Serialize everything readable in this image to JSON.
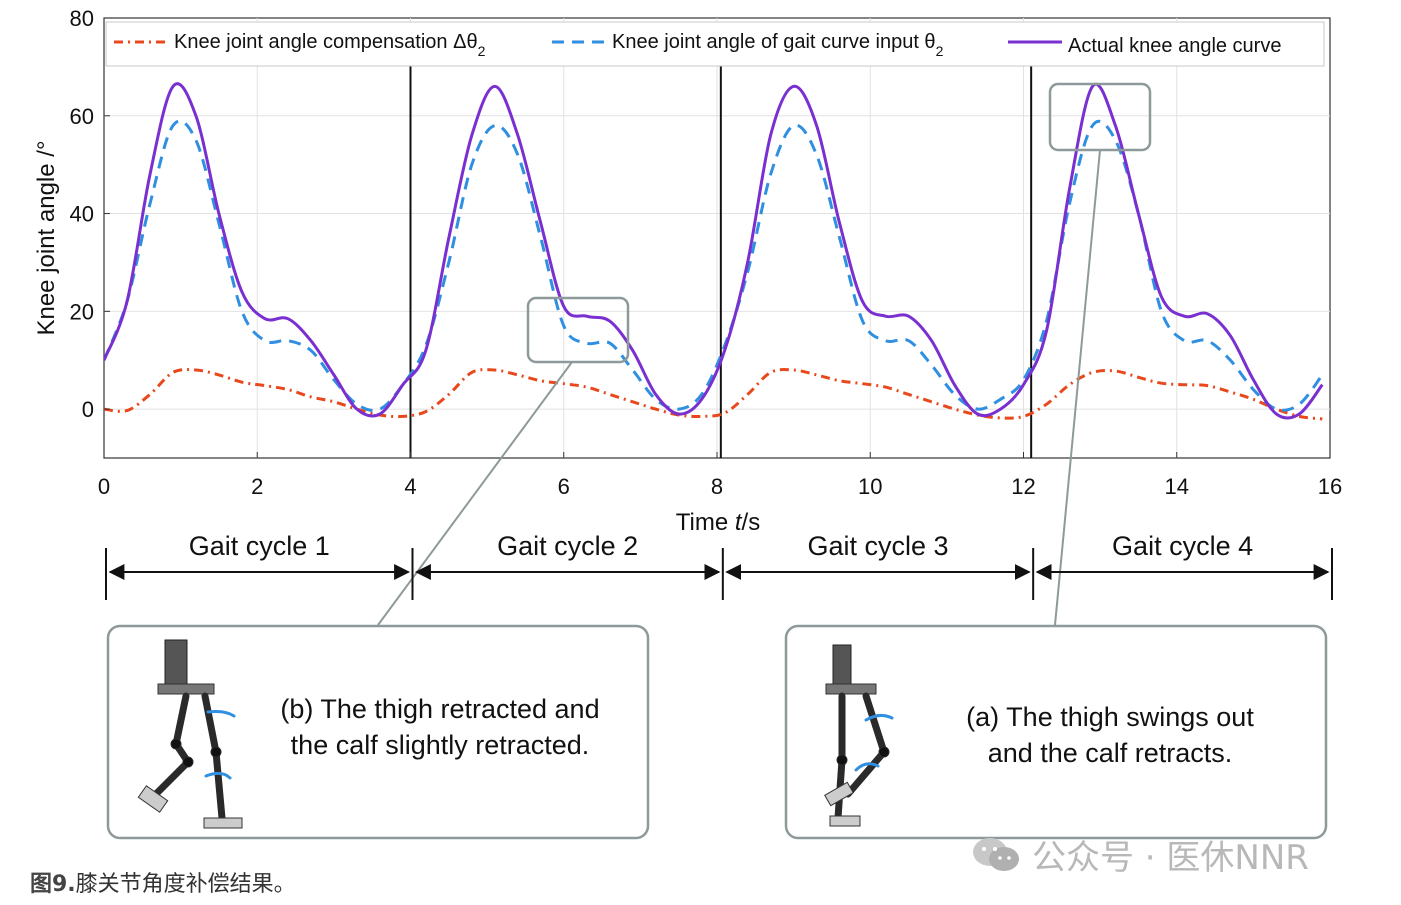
{
  "chart_data": {
    "type": "line",
    "xlabel_prefix": "Time ",
    "xlabel_var": "t",
    "xlabel_suffix": "/s",
    "ylabel": "Knee joint angle /°",
    "xlim": [
      0,
      16
    ],
    "ylim": [
      -10,
      80
    ],
    "xticks": [
      0,
      2,
      4,
      6,
      8,
      10,
      12,
      14,
      16
    ],
    "yticks": [
      0,
      20,
      40,
      60,
      80
    ],
    "grid": true,
    "legend_position": "top",
    "cycle_dividers": [
      4.0,
      8.05,
      12.1
    ],
    "series": [
      {
        "name": "Knee joint angle compensation Δθ2",
        "color": "#e8481c",
        "style": "dash-dot",
        "x": [
          0,
          0.3,
          0.6,
          0.9,
          1.2,
          1.5,
          1.8,
          2.1,
          2.4,
          2.7,
          3.0,
          3.3,
          3.6,
          3.9,
          4.2,
          4.5,
          4.8,
          5.1,
          5.4,
          5.7,
          6.0,
          6.3,
          6.6,
          6.9,
          7.2,
          7.5,
          7.8,
          8.1,
          8.4,
          8.7,
          9.0,
          9.3,
          9.6,
          9.9,
          10.2,
          10.5,
          10.8,
          11.1,
          11.4,
          11.7,
          12.0,
          12.3,
          12.6,
          12.9,
          13.2,
          13.5,
          13.8,
          14.1,
          14.4,
          14.7,
          15.0,
          15.3,
          15.6,
          15.9
        ],
        "y": [
          0,
          -0.3,
          3,
          7.5,
          8,
          7,
          5.5,
          4.8,
          4,
          2.5,
          1.5,
          0,
          -1.2,
          -1.5,
          -0.5,
          3,
          7.5,
          8,
          7,
          5.8,
          5.2,
          4.5,
          3,
          1.5,
          0,
          -1.2,
          -1.5,
          -0.8,
          3,
          7.5,
          8,
          7,
          5.8,
          5.2,
          4.5,
          3,
          1.5,
          0,
          -1.2,
          -1.8,
          -1.5,
          1,
          5,
          7.5,
          7.8,
          6.5,
          5.3,
          5,
          4.8,
          3.5,
          2,
          0,
          -1.5,
          -2
        ]
      },
      {
        "name": "Knee joint angle of gait curve input θ2",
        "color": "#2f8fe0",
        "style": "dashed",
        "x": [
          0,
          0.3,
          0.6,
          0.9,
          1.2,
          1.5,
          1.8,
          2.1,
          2.4,
          2.7,
          3.0,
          3.3,
          3.6,
          3.9,
          4.2,
          4.5,
          4.8,
          5.1,
          5.4,
          5.7,
          6.0,
          6.3,
          6.6,
          6.9,
          7.2,
          7.5,
          7.8,
          8.1,
          8.4,
          8.7,
          9.0,
          9.3,
          9.6,
          9.9,
          10.2,
          10.5,
          10.8,
          11.1,
          11.4,
          11.7,
          12.0,
          12.3,
          12.6,
          12.9,
          13.2,
          13.5,
          13.8,
          14.1,
          14.4,
          14.7,
          15.0,
          15.3,
          15.6,
          15.9
        ],
        "y": [
          10,
          22,
          42,
          58,
          55,
          38,
          20,
          14,
          14,
          12,
          6,
          1,
          0,
          5,
          13,
          30,
          50,
          58,
          52,
          35,
          17,
          13.5,
          13.5,
          8,
          2,
          0,
          3,
          13,
          28,
          48,
          58,
          52,
          35,
          18,
          14,
          14,
          9,
          3,
          0,
          2,
          6,
          18,
          42,
          58,
          55,
          40,
          20,
          14,
          14,
          10,
          4,
          0,
          1,
          7
        ]
      },
      {
        "name": "Actual knee angle curve",
        "color": "#7a2fd0",
        "style": "solid",
        "x": [
          0,
          0.3,
          0.6,
          0.9,
          1.2,
          1.5,
          1.8,
          2.1,
          2.4,
          2.7,
          3.0,
          3.3,
          3.6,
          3.9,
          4.2,
          4.5,
          4.8,
          5.1,
          5.4,
          5.7,
          6.0,
          6.3,
          6.6,
          6.9,
          7.2,
          7.5,
          7.8,
          8.1,
          8.4,
          8.7,
          9.0,
          9.3,
          9.6,
          9.9,
          10.2,
          10.5,
          10.8,
          11.1,
          11.4,
          11.7,
          12.0,
          12.3,
          12.6,
          12.9,
          13.2,
          13.5,
          13.8,
          14.1,
          14.4,
          14.7,
          15.0,
          15.3,
          15.6,
          15.9
        ],
        "y": [
          10,
          22,
          48,
          66,
          60,
          40,
          24,
          18.5,
          18.5,
          14,
          7,
          0,
          -1,
          5,
          12,
          35,
          56,
          66,
          56,
          38,
          21,
          19,
          18,
          12,
          3,
          -1,
          2,
          12,
          30,
          56,
          66,
          58,
          38,
          22,
          19,
          19,
          14,
          5,
          -1,
          0,
          5,
          16,
          45,
          66,
          58,
          40,
          23,
          19,
          19.5,
          15,
          6,
          -1,
          -1,
          5
        ]
      }
    ],
    "cycles": [
      "Gait cycle 1",
      "Gait cycle 2",
      "Gait cycle 3",
      "Gait cycle 4"
    ],
    "callout_b_line1": "(b) The thigh retracted and",
    "callout_b_line2": "the calf slightly retracted.",
    "callout_a_line1": "(a) The thigh swings out",
    "callout_a_line2": "and the calf retracts."
  },
  "legend": {
    "item1_label": "Knee joint angle compensation Δθ",
    "item1_sub": "2",
    "item2_label": "Knee joint angle of gait curve input θ",
    "item2_sub": "2",
    "item3_label": "Actual knee angle curve"
  },
  "caption": {
    "prefix": "图9.",
    "text": "膝关节角度补偿结果。"
  },
  "watermark": {
    "text": "公众号 · 医休NNR"
  },
  "colors": {
    "axis": "#333333",
    "grid": "#e2e2e2",
    "callout_border": "#8e9a99",
    "arrow": "#111111"
  }
}
